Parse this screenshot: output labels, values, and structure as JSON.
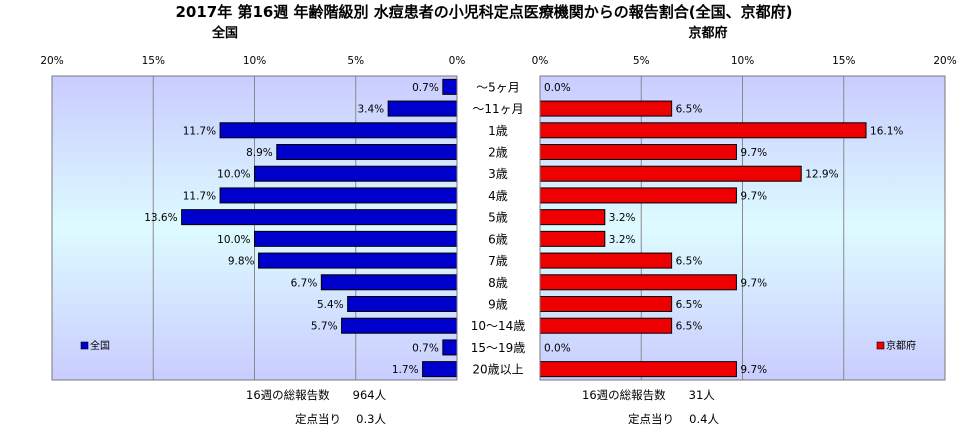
{
  "title": "2017年 第16週 年齢階級別 水痘患者の小児科定点医療機関からの報告割合(全国、京都府)",
  "left_panel": {
    "heading": "全国",
    "legend": "全国"
  },
  "right_panel": {
    "heading": "京都府",
    "legend": "京都府"
  },
  "footer": {
    "national_total": "16週の総報告数　　964人",
    "national_per_site": "定点当り　 0.3人",
    "kyoto_total": "16週の総報告数　　31人",
    "kyoto_per_site": "定点当り　 0.4人"
  },
  "chart_data": [
    {
      "type": "bar",
      "orientation": "horizontal",
      "title": "全国",
      "categories": [
        "～5ヶ月",
        "～11ヶ月",
        "1歳",
        "2歳",
        "3歳",
        "4歳",
        "5歳",
        "6歳",
        "7歳",
        "8歳",
        "9歳",
        "10～14歳",
        "15～19歳",
        "20歳以上"
      ],
      "series": [
        {
          "name": "全国",
          "values": [
            0.7,
            3.4,
            11.7,
            8.9,
            10.0,
            11.7,
            13.6,
            10.0,
            9.8,
            6.7,
            5.4,
            5.7,
            0.7,
            1.7
          ]
        }
      ],
      "value_labels": [
        "0.7%",
        "3.4%",
        "11.7%",
        "8.9%",
        "10.0%",
        "11.7%",
        "13.6%",
        "10.0%",
        "9.8%",
        "6.7%",
        "5.4%",
        "5.7%",
        "0.7%",
        "1.7%"
      ],
      "xlim": [
        0,
        20
      ],
      "x_ticks": [
        "20%",
        "15%",
        "10%",
        "5%",
        "0%"
      ],
      "x_reversed": true,
      "bar_color": "#0000cc",
      "legend_position": "bottom-left",
      "grid": true
    },
    {
      "type": "bar",
      "orientation": "horizontal",
      "title": "京都府",
      "categories": [
        "～5ヶ月",
        "～11ヶ月",
        "1歳",
        "2歳",
        "3歳",
        "4歳",
        "5歳",
        "6歳",
        "7歳",
        "8歳",
        "9歳",
        "10～14歳",
        "15～19歳",
        "20歳以上"
      ],
      "series": [
        {
          "name": "京都府",
          "values": [
            0.0,
            6.5,
            16.1,
            9.7,
            12.9,
            9.7,
            3.2,
            3.2,
            6.5,
            9.7,
            6.5,
            6.5,
            0.0,
            9.7
          ]
        }
      ],
      "value_labels": [
        "0.0%",
        "6.5%",
        "16.1%",
        "9.7%",
        "12.9%",
        "9.7%",
        "3.2%",
        "3.2%",
        "6.5%",
        "9.7%",
        "6.5%",
        "6.5%",
        "0.0%",
        "9.7%"
      ],
      "xlim": [
        0,
        20
      ],
      "x_ticks": [
        "0%",
        "5%",
        "10%",
        "15%",
        "20%"
      ],
      "x_reversed": false,
      "bar_color": "#ee0000",
      "legend_position": "bottom-right",
      "grid": true
    }
  ]
}
